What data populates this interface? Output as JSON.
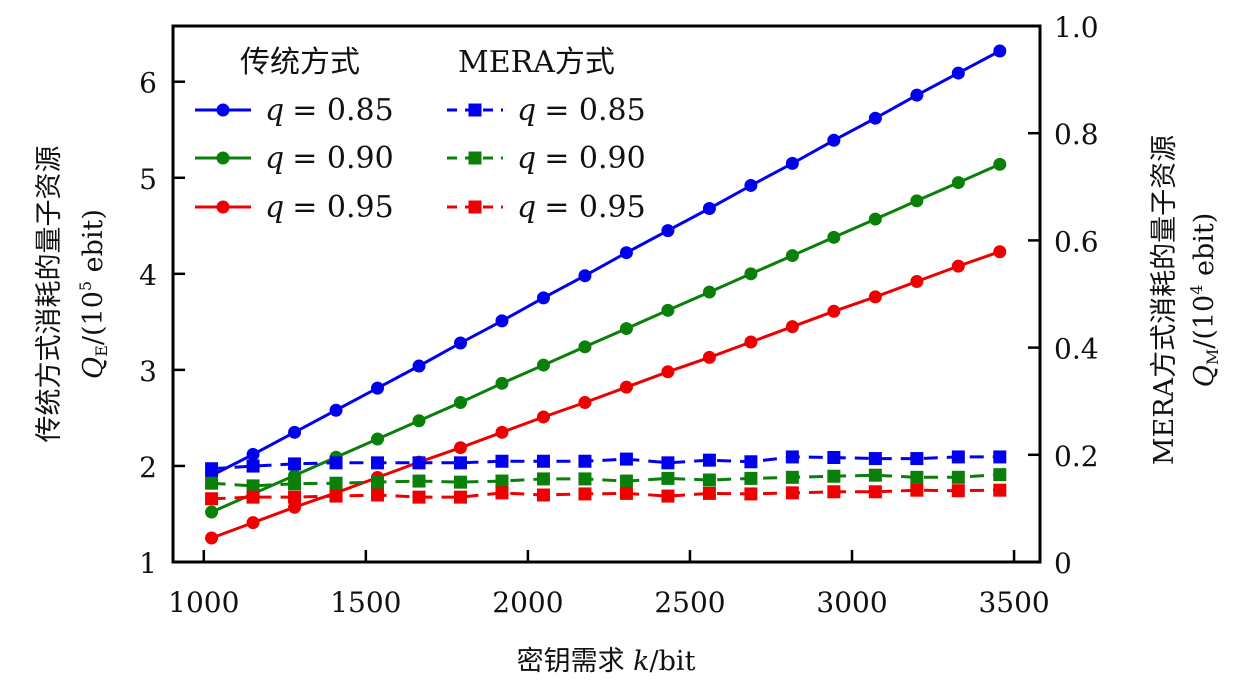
{
  "chart_data": {
    "type": "line",
    "xlabel": "密钥需求 k/bit",
    "xlabel_parts": {
      "prefix": "密钥需求 ",
      "var": "k",
      "suffix": "/bit"
    },
    "ylabel_left": {
      "line1": "传统方式消耗的量子资源",
      "line2_var": "Q",
      "line2_sub": "E",
      "line2_rest": "/(10",
      "line2_sup": "5",
      "line2_end": " ebit)"
    },
    "ylabel_right": {
      "line1": "MERA方式消耗的量子资源",
      "line2_var": "Q",
      "line2_sub": "M",
      "line2_rest": "/(10",
      "line2_sup": "4",
      "line2_end": " ebit)"
    },
    "xlim": [
      905,
      3580
    ],
    "ylim_left": [
      1,
      6.58
    ],
    "ylim_right": [
      0,
      1.0
    ],
    "x_ticks": [
      "1000",
      "1500",
      "2000",
      "2500",
      "3000",
      "3500"
    ],
    "x_tick_values": [
      1000,
      1500,
      2000,
      2500,
      3000,
      3500
    ],
    "y_left_ticks": [
      "1",
      "2",
      "3",
      "4",
      "5",
      "6"
    ],
    "y_left_tick_values": [
      1,
      2,
      3,
      4,
      5,
      6
    ],
    "y_right_ticks": [
      "0",
      "0.2",
      "0.4",
      "0.6",
      "0.8",
      "1.0"
    ],
    "y_right_tick_values": [
      0,
      0.2,
      0.4,
      0.6,
      0.8,
      1.0
    ],
    "grid": false,
    "legend": {
      "placement": "top-left",
      "col1_title": "传统方式",
      "col2_title": "MERA方式"
    },
    "x": [
      1024,
      1152,
      1280,
      1408,
      1536,
      1664,
      1792,
      1920,
      2048,
      2176,
      2304,
      2432,
      2560,
      2688,
      2816,
      2944,
      3072,
      3200,
      3328,
      3456
    ],
    "series": [
      {
        "name": "传统方式 q = 0.85",
        "q_label": "q",
        "q_value": "= 0.85",
        "method": "traditional",
        "axis": "left",
        "color": "#0000ee",
        "marker": "circle",
        "dash": false,
        "values": [
          1.9,
          2.12,
          2.35,
          2.58,
          2.81,
          3.04,
          3.28,
          3.51,
          3.75,
          3.98,
          4.22,
          4.45,
          4.68,
          4.92,
          5.15,
          5.39,
          5.62,
          5.86,
          6.09,
          6.32
        ]
      },
      {
        "name": "传统方式 q = 0.90",
        "q_label": "q",
        "q_value": "= 0.90",
        "method": "traditional",
        "axis": "left",
        "color": "#0a7f0a",
        "marker": "circle",
        "dash": false,
        "values": [
          1.52,
          1.71,
          1.9,
          2.09,
          2.28,
          2.47,
          2.66,
          2.86,
          3.05,
          3.24,
          3.43,
          3.62,
          3.81,
          4.0,
          4.19,
          4.38,
          4.57,
          4.76,
          4.95,
          5.14
        ]
      },
      {
        "name": "传统方式 q = 0.95",
        "q_label": "q",
        "q_value": "= 0.95",
        "method": "traditional",
        "axis": "left",
        "color": "#ee0000",
        "marker": "circle",
        "dash": false,
        "values": [
          1.25,
          1.41,
          1.57,
          1.72,
          1.88,
          2.04,
          2.19,
          2.35,
          2.51,
          2.66,
          2.82,
          2.98,
          3.13,
          3.29,
          3.45,
          3.61,
          3.76,
          3.92,
          4.08,
          4.23
        ]
      },
      {
        "name": "MERA方式 q = 0.85",
        "q_label": "q",
        "q_value": "= 0.85",
        "method": "MERA",
        "axis": "right",
        "color": "#0000ee",
        "marker": "square",
        "dash": true,
        "values": [
          0.174,
          0.179,
          0.183,
          0.185,
          0.185,
          0.185,
          0.185,
          0.188,
          0.188,
          0.188,
          0.192,
          0.185,
          0.19,
          0.187,
          0.196,
          0.195,
          0.193,
          0.193,
          0.196,
          0.196
        ]
      },
      {
        "name": "MERA方式 q = 0.90",
        "q_label": "q",
        "q_value": "= 0.90",
        "method": "MERA",
        "axis": "right",
        "color": "#0a7f0a",
        "marker": "square",
        "dash": true,
        "values": [
          0.147,
          0.142,
          0.146,
          0.147,
          0.149,
          0.151,
          0.149,
          0.151,
          0.155,
          0.155,
          0.151,
          0.156,
          0.153,
          0.156,
          0.158,
          0.16,
          0.162,
          0.158,
          0.158,
          0.163
        ]
      },
      {
        "name": "MERA方式 q = 0.95",
        "q_label": "q",
        "q_value": "= 0.95",
        "method": "MERA",
        "axis": "right",
        "color": "#ee0000",
        "marker": "square",
        "dash": true,
        "values": [
          0.118,
          0.121,
          0.121,
          0.123,
          0.125,
          0.121,
          0.121,
          0.129,
          0.125,
          0.127,
          0.128,
          0.123,
          0.128,
          0.127,
          0.129,
          0.131,
          0.131,
          0.134,
          0.133,
          0.134
        ]
      }
    ]
  }
}
